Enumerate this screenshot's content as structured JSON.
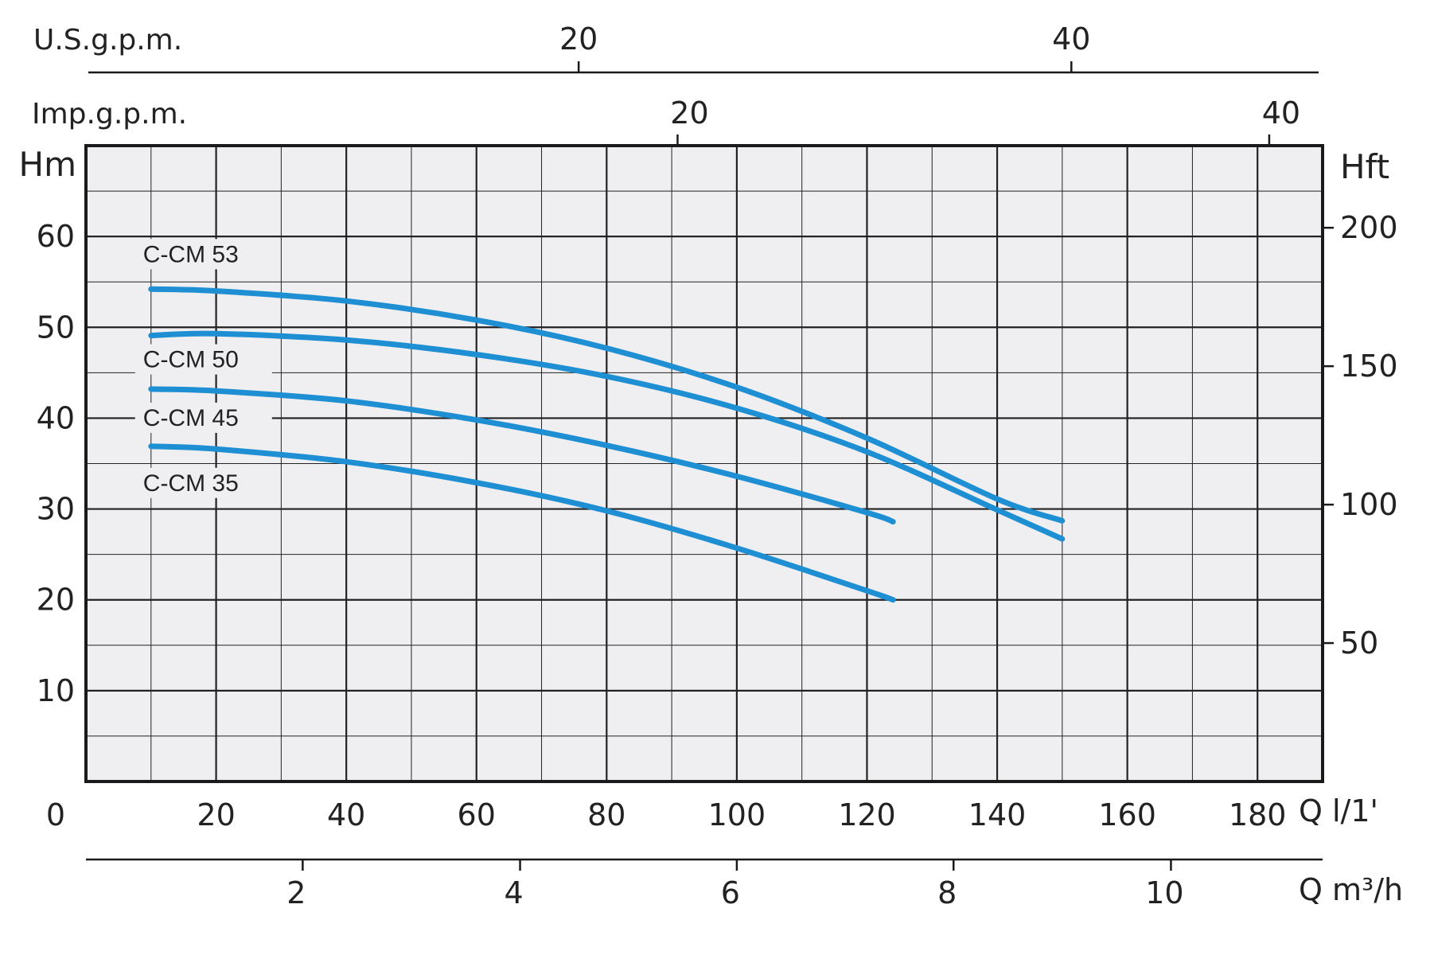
{
  "chart_data": {
    "type": "line",
    "title": "",
    "x": [
      10,
      20,
      40,
      60,
      80,
      100,
      120,
      124,
      140,
      150
    ],
    "series": [
      {
        "name": "C-CM 53",
        "points": [
          [
            10,
            54.2
          ],
          [
            20,
            54.0
          ],
          [
            40,
            52.9
          ],
          [
            60,
            50.8
          ],
          [
            80,
            47.7
          ],
          [
            100,
            43.4
          ],
          [
            120,
            37.8
          ],
          [
            140,
            31.1
          ],
          [
            150,
            28.7
          ]
        ]
      },
      {
        "name": "C-CM 50",
        "points": [
          [
            10,
            49.1
          ],
          [
            20,
            49.3
          ],
          [
            40,
            48.6
          ],
          [
            60,
            47.0
          ],
          [
            80,
            44.6
          ],
          [
            100,
            41.1
          ],
          [
            120,
            36.3
          ],
          [
            140,
            29.9
          ],
          [
            150,
            26.7
          ]
        ]
      },
      {
        "name": "C-CM 45",
        "points": [
          [
            10,
            43.2
          ],
          [
            20,
            43.0
          ],
          [
            40,
            41.9
          ],
          [
            60,
            39.8
          ],
          [
            80,
            37.0
          ],
          [
            100,
            33.6
          ],
          [
            120,
            29.6
          ],
          [
            124,
            28.6
          ]
        ]
      },
      {
        "name": "C-CM 35",
        "points": [
          [
            10,
            36.9
          ],
          [
            20,
            36.6
          ],
          [
            40,
            35.2
          ],
          [
            60,
            32.9
          ],
          [
            80,
            29.8
          ],
          [
            100,
            25.7
          ],
          [
            120,
            21.0
          ],
          [
            124,
            20.0
          ]
        ]
      }
    ],
    "xlabel": "Q l/1'",
    "ylabel": "Hm",
    "y2label": "Hft",
    "xlim": [
      0,
      190
    ],
    "ylim": [
      0,
      70
    ],
    "x_ticks": [
      "0",
      "20",
      "40",
      "60",
      "80",
      "100",
      "120",
      "140",
      "160",
      "180"
    ],
    "y_ticks": [
      "10",
      "20",
      "30",
      "40",
      "50",
      "60"
    ],
    "y2_ticks": [
      {
        "label": "50",
        "hm": 15.24
      },
      {
        "label": "100",
        "hm": 30.48
      },
      {
        "label": "150",
        "hm": 45.72
      },
      {
        "label": "200",
        "hm": 60.96
      }
    ],
    "secondary_axes": [
      {
        "label": "U.S.g.p.m.",
        "position": "top",
        "ticks": [
          {
            "label": "20",
            "lpm": 75.7
          },
          {
            "label": "40",
            "lpm": 151.4
          }
        ]
      },
      {
        "label": "Imp.g.p.m.",
        "position": "top",
        "ticks": [
          {
            "label": "20",
            "lpm": 90.9
          },
          {
            "label": "40",
            "lpm": 181.8
          }
        ]
      },
      {
        "label": "Q m³/h",
        "position": "bottom",
        "ticks": [
          {
            "label": "2",
            "lpm": 33.3
          },
          {
            "label": "4",
            "lpm": 66.7
          },
          {
            "label": "6",
            "lpm": 100
          },
          {
            "label": "8",
            "lpm": 133.3
          },
          {
            "label": "10",
            "lpm": 166.7
          }
        ]
      }
    ],
    "grid": true,
    "colors": {
      "curve": "#1f8fd4",
      "plot_bg": "#efeff1",
      "grid": "#222222"
    }
  }
}
